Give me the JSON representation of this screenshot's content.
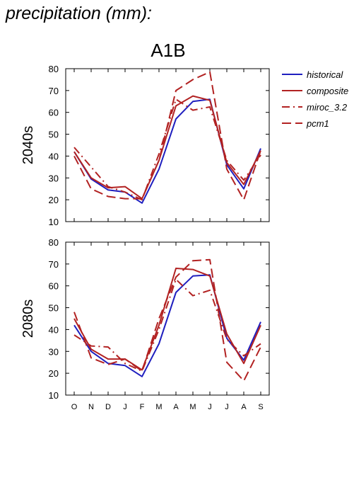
{
  "header": "precipitation (mm):",
  "chart_data": [
    {
      "type": "line",
      "title": "A1B",
      "ylabel": "2040s",
      "xlabel": "",
      "categories": [
        "O",
        "N",
        "D",
        "J",
        "F",
        "M",
        "A",
        "M",
        "J",
        "J",
        "A",
        "S"
      ],
      "ylim": [
        10,
        80
      ],
      "yticks": [
        10,
        20,
        30,
        40,
        50,
        60,
        70,
        80
      ],
      "grid": false,
      "legend_position": "right",
      "series": [
        {
          "name": "historical",
          "color": "#1f1fbf",
          "dash": "solid",
          "values": [
            42,
            29.5,
            24.5,
            23.5,
            18.5,
            34,
            57,
            65,
            66,
            36,
            25,
            43.5
          ]
        },
        {
          "name": "composite",
          "color": "#b22222",
          "dash": "solid",
          "values": [
            42,
            30,
            25.5,
            26,
            20.5,
            38,
            63,
            67.5,
            65.5,
            37,
            27,
            42.5
          ]
        },
        {
          "name": "miroc_3.2",
          "color": "#b22222",
          "dash": "dashdot",
          "values": [
            44,
            35,
            26,
            23.5,
            20,
            41,
            66,
            61,
            62.5,
            38,
            29,
            40.5
          ]
        },
        {
          "name": "pcm1",
          "color": "#b22222",
          "dash": "dash",
          "values": [
            40,
            25,
            21.5,
            20.5,
            20.5,
            38,
            70,
            75,
            78.5,
            34,
            20,
            42.5
          ]
        }
      ]
    },
    {
      "type": "line",
      "title": "",
      "ylabel": "2080s",
      "xlabel": "",
      "categories": [
        "O",
        "N",
        "D",
        "J",
        "F",
        "M",
        "A",
        "M",
        "J",
        "J",
        "A",
        "S"
      ],
      "ylim": [
        10,
        80
      ],
      "yticks": [
        10,
        20,
        30,
        40,
        50,
        60,
        70,
        80
      ],
      "grid": false,
      "series": [
        {
          "name": "historical",
          "color": "#1f1fbf",
          "dash": "solid",
          "values": [
            42,
            30,
            24.5,
            23.5,
            18.5,
            33.5,
            57,
            64.5,
            65,
            36,
            26,
            43.5
          ]
        },
        {
          "name": "composite",
          "color": "#b22222",
          "dash": "solid",
          "values": [
            45,
            31,
            26.5,
            26.5,
            21.5,
            42,
            68,
            67.5,
            64.5,
            38,
            24.5,
            42
          ]
        },
        {
          "name": "miroc_3.2",
          "color": "#b22222",
          "dash": "dashdot",
          "values": [
            37.5,
            32.5,
            32,
            24.5,
            21,
            40,
            63,
            55.5,
            58,
            35.5,
            28,
            33.5
          ]
        },
        {
          "name": "pcm1",
          "color": "#b22222",
          "dash": "dash",
          "values": [
            48,
            27,
            24,
            26.5,
            21,
            45,
            64,
            71.5,
            72,
            25,
            16.5,
            32
          ]
        }
      ]
    }
  ]
}
